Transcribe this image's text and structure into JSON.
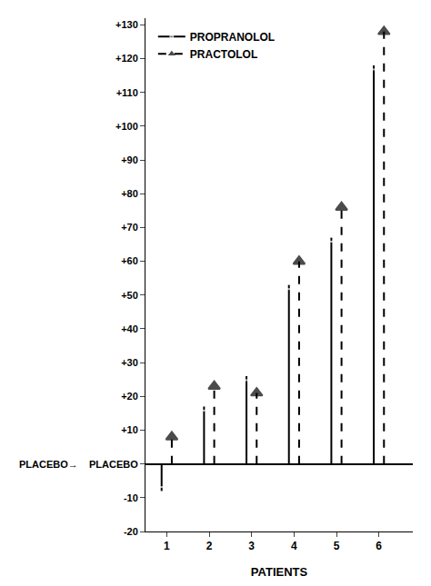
{
  "chart_data": {
    "type": "lollipop",
    "x": [
      1,
      2,
      3,
      4,
      5,
      6
    ],
    "series": [
      {
        "name": "PROPRANOLOL",
        "color": "#000000",
        "marker": "circle-open",
        "line_style": "solid",
        "values": [
          -8,
          17,
          26,
          53,
          67,
          118
        ]
      },
      {
        "name": "PRACTOLOL",
        "color": "#000000",
        "marker": "triangle-up",
        "line_style": "dash",
        "values": [
          8,
          23,
          21,
          60,
          76,
          128
        ]
      }
    ],
    "xlabel": "PATIENTS",
    "xlim": [
      0.5,
      6.8
    ],
    "xticks": [
      1,
      2,
      3,
      4,
      5,
      6
    ],
    "ylim": [
      -20,
      132
    ],
    "yticks": [
      -20,
      -10,
      {
        "value": 0,
        "label": "PLACEBO"
      },
      {
        "value": 10,
        "label": "+10"
      },
      {
        "value": 20,
        "label": "+20"
      },
      {
        "value": 30,
        "label": "+30"
      },
      {
        "value": 40,
        "label": "+40"
      },
      {
        "value": 50,
        "label": "+50"
      },
      {
        "value": 60,
        "label": "+60"
      },
      {
        "value": 70,
        "label": "+70"
      },
      {
        "value": 80,
        "label": "+80"
      },
      {
        "value": 90,
        "label": "+90"
      },
      {
        "value": 100,
        "label": "+100"
      },
      {
        "value": 110,
        "label": "+110"
      },
      {
        "value": 120,
        "label": "+120"
      },
      {
        "value": 130,
        "label": "+130"
      }
    ],
    "annotations": [
      {
        "text": "PLACEBO→",
        "y": 0
      }
    ],
    "legend": "upper left",
    "grid": false
  }
}
